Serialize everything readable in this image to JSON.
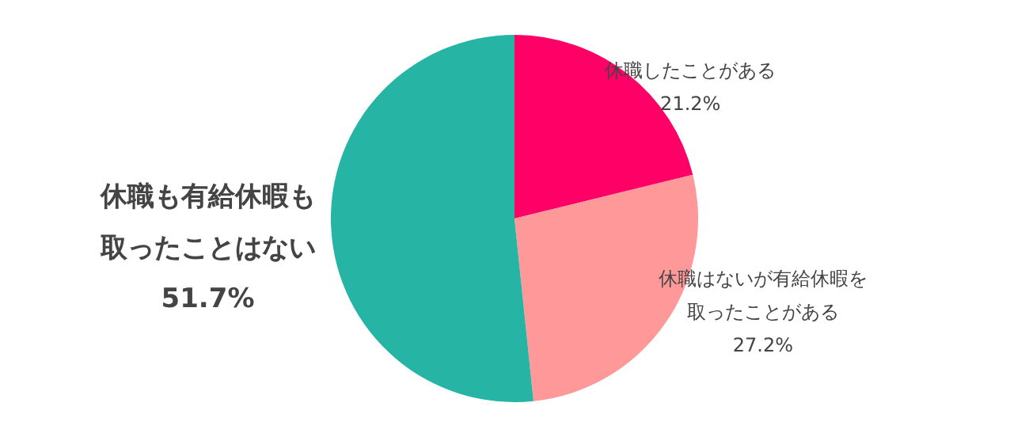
{
  "chart_data": {
    "type": "pie",
    "categories": [
      "休職したことがある",
      "休職はないが有給休暇を取ったことがある",
      "休職も有給休暇も取ったことはない"
    ],
    "values": [
      21.2,
      27.2,
      51.7
    ],
    "colors": [
      "#ff0066",
      "#ff9999",
      "#26b5a5"
    ],
    "value_labels": [
      "21.2%",
      "27.2%",
      "51.7%"
    ],
    "legend": false
  }
}
